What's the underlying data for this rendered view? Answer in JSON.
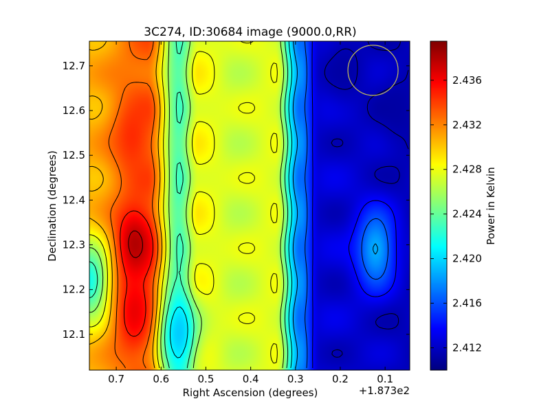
{
  "chart_data": {
    "type": "heatmap",
    "title": "3C274, ID:30684 image (9000.0,RR)",
    "xlabel": "Right Ascension (degrees)",
    "ylabel": "Declination (degrees)",
    "x_offset_label": "+1.873e2",
    "x_ticks": [
      "0.7",
      "0.6",
      "0.5",
      "0.4",
      "0.3",
      "0.2",
      "0.1"
    ],
    "x_tick_values": [
      0.7,
      0.6,
      0.5,
      0.4,
      0.3,
      0.2,
      0.1
    ],
    "xlim": [
      0.76,
      0.045
    ],
    "y_ticks": [
      "12.1",
      "12.2",
      "12.3",
      "12.4",
      "12.5",
      "12.6",
      "12.7"
    ],
    "y_tick_values": [
      12.1,
      12.2,
      12.3,
      12.4,
      12.5,
      12.6,
      12.7
    ],
    "ylim": [
      12.02,
      12.755
    ],
    "colorbar": {
      "label": "Power in Kelvin",
      "ticks": [
        "2.412",
        "2.416",
        "2.420",
        "2.424",
        "2.428",
        "2.432",
        "2.436"
      ],
      "tick_values": [
        2.412,
        2.416,
        2.42,
        2.424,
        2.428,
        2.432,
        2.436
      ],
      "range": [
        2.41,
        2.4395
      ],
      "colormap": "jet"
    },
    "contours": true,
    "beam_circle": {
      "ra": 0.127,
      "dec": 12.69,
      "radius_deg": 0.056,
      "color": "#c8c05a"
    },
    "features": [
      {
        "kind": "peak",
        "ra": 0.66,
        "dec": 12.3,
        "value": 2.439
      },
      {
        "kind": "peak",
        "ra": 0.665,
        "dec": 12.54,
        "value": 2.435
      },
      {
        "kind": "peak",
        "ra": 0.66,
        "dec": 12.15,
        "value": 2.437
      },
      {
        "kind": "trough",
        "ra": 0.56,
        "dec": 12.1,
        "value": 2.419
      },
      {
        "kind": "trough",
        "ra": 0.76,
        "dec": 12.22,
        "value": 2.42
      },
      {
        "kind": "trough",
        "ra": 0.19,
        "dec": 12.7,
        "value": 2.411
      },
      {
        "kind": "trough",
        "ra": 0.07,
        "dec": 12.6,
        "value": 2.411
      },
      {
        "kind": "peak",
        "ra": 0.12,
        "dec": 12.29,
        "value": 2.42
      }
    ]
  }
}
